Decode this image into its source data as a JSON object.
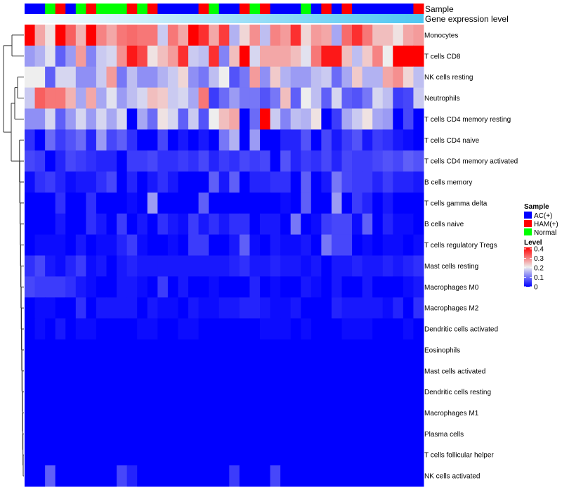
{
  "chart_data": {
    "type": "heatmap",
    "annotations": {
      "sample_label": "Sample",
      "gene_label": "Gene expression level"
    },
    "sample_groups": [
      "AC(+)",
      "AC(+)",
      "Normal",
      "HAM(+)",
      "AC(+)",
      "Normal",
      "HAM(+)",
      "Normal",
      "Normal",
      "Normal",
      "HAM(+)",
      "Normal",
      "HAM(+)",
      "AC(+)",
      "AC(+)",
      "AC(+)",
      "AC(+)",
      "HAM(+)",
      "Normal",
      "AC(+)",
      "AC(+)",
      "HAM(+)",
      "Normal",
      "HAM(+)",
      "AC(+)",
      "AC(+)",
      "AC(+)",
      "Normal",
      "AC(+)",
      "HAM(+)",
      "AC(+)",
      "HAM(+)",
      "AC(+)",
      "AC(+)",
      "AC(+)",
      "AC(+)",
      "AC(+)",
      "AC(+)",
      "HAM(+)"
    ],
    "legend": {
      "sample_title": "Sample",
      "sample_items": [
        {
          "label": "AC(+)",
          "color": "#0000FF"
        },
        {
          "label": "HAM(+)",
          "color": "#FF0000"
        },
        {
          "label": "Normal",
          "color": "#00FF00"
        }
      ],
      "level_title": "Level",
      "level_ticks": [
        "0.4",
        "0.3",
        "0.2",
        "0.1",
        "0"
      ],
      "level_range": [
        0,
        0.4
      ],
      "placement": "right"
    },
    "colors": {
      "low": "#0000FF",
      "mid": "#EEEEEE",
      "high": "#FF0000",
      "gene_low": "#FFFFFF",
      "gene_high": "#4DC6F2"
    },
    "rows": [
      {
        "name": "Monocytes",
        "values": [
          0.4,
          0.26,
          0.21,
          0.4,
          0.32,
          0.25,
          0.4,
          0.29,
          0.26,
          0.3,
          0.31,
          0.3,
          0.3,
          0.17,
          0.3,
          0.26,
          0.4,
          0.36,
          0.26,
          0.35,
          0.15,
          0.22,
          0.28,
          0.16,
          0.29,
          0.27,
          0.36,
          0.22,
          0.27,
          0.26,
          0.14,
          0.31,
          0.36,
          0.3,
          0.24,
          0.24,
          0.21,
          0.26,
          0.27
        ]
      },
      {
        "name": "T cells CD8",
        "values": [
          0.13,
          0.15,
          0.19,
          0.08,
          0.13,
          0.27,
          0.11,
          0.17,
          0.18,
          0.28,
          0.38,
          0.34,
          0.21,
          0.24,
          0.27,
          0.36,
          0.17,
          0.16,
          0.36,
          0.11,
          0.24,
          0.4,
          0.18,
          0.26,
          0.26,
          0.26,
          0.24,
          0.19,
          0.3,
          0.38,
          0.38,
          0.24,
          0.16,
          0.23,
          0.29,
          0.2,
          0.4,
          0.4,
          0.4
        ]
      },
      {
        "name": "NK cells resting",
        "values": [
          0.2,
          0.2,
          0.08,
          0.18,
          0.18,
          0.12,
          0.12,
          0.17,
          0.27,
          0.1,
          0.16,
          0.12,
          0.12,
          0.15,
          0.17,
          0.22,
          0.12,
          0.1,
          0.16,
          0.2,
          0.07,
          0.1,
          0.27,
          0.12,
          0.23,
          0.15,
          0.13,
          0.13,
          0.16,
          0.17,
          0.09,
          0.14,
          0.23,
          0.15,
          0.15,
          0.26,
          0.28,
          0.22,
          0.16
        ]
      },
      {
        "name": "Neutrophils",
        "values": [
          0.17,
          0.32,
          0.3,
          0.3,
          0.25,
          0.14,
          0.26,
          0.14,
          0.19,
          0.13,
          0.16,
          0.18,
          0.24,
          0.23,
          0.17,
          0.18,
          0.14,
          0.3,
          0.05,
          0.09,
          0.13,
          0.1,
          0.1,
          0.07,
          0.1,
          0.24,
          0.08,
          0.2,
          0.16,
          0.08,
          0.18,
          0.08,
          0.07,
          0.1,
          0.18,
          0.16,
          0.05,
          0.06,
          0.17
        ]
      },
      {
        "name": "T cells CD4 memory resting",
        "values": [
          0.12,
          0.12,
          0.18,
          0.08,
          0.13,
          0.18,
          0.13,
          0.18,
          0.14,
          0.18,
          0,
          0.14,
          0.09,
          0.21,
          0.18,
          0.08,
          0.17,
          0.07,
          0.2,
          0.24,
          0.26,
          0,
          0.09,
          0.4,
          0.17,
          0.11,
          0.16,
          0.15,
          0.21,
          0,
          0.05,
          0.14,
          0.17,
          0.21,
          0.14,
          0.13,
          0,
          0.06,
          0
        ]
      },
      {
        "name": "T cells CD4 naive",
        "values": [
          0.04,
          0,
          0.09,
          0.05,
          0.07,
          0.09,
          0.03,
          0.13,
          0.06,
          0.08,
          0.04,
          0,
          0,
          0.06,
          0,
          0.02,
          0,
          0.02,
          0,
          0.1,
          0.15,
          0,
          0.13,
          0,
          0,
          0.03,
          0.03,
          0.07,
          0,
          0.06,
          0.02,
          0.05,
          0.07,
          0.02,
          0.05,
          0.04,
          0.02,
          0.01,
          0
        ]
      },
      {
        "name": "T cells CD4 memory activated",
        "values": [
          0.06,
          0.05,
          0,
          0.03,
          0.06,
          0.05,
          0.04,
          0.03,
          0.03,
          0,
          0.05,
          0.05,
          0.06,
          0.04,
          0.04,
          0.05,
          0.04,
          0.06,
          0.03,
          0.05,
          0.04,
          0.06,
          0.05,
          0.06,
          0,
          0.07,
          0.03,
          0.05,
          0.04,
          0.06,
          0.03,
          0.06,
          0.05,
          0.05,
          0.06,
          0.07,
          0.06,
          0.08,
          0.07
        ]
      },
      {
        "name": "B cells memory",
        "values": [
          0.01,
          0.04,
          0.05,
          0.03,
          0.01,
          0.02,
          0.02,
          0.04,
          0.06,
          0,
          0.03,
          0,
          0.02,
          0.04,
          0.02,
          0,
          0,
          0,
          0.08,
          0.02,
          0.08,
          0,
          0.03,
          0.03,
          0.04,
          0.04,
          0,
          0.08,
          0,
          0.02,
          0.1,
          0.06,
          0.05,
          0.05,
          0.03,
          0.05,
          0.03,
          0.03,
          0.02
        ]
      },
      {
        "name": "T cells gamma delta",
        "values": [
          0,
          0,
          0,
          0.04,
          0,
          0,
          0.04,
          0,
          0,
          0,
          0.01,
          0,
          0.13,
          0,
          0,
          0,
          0,
          0.08,
          0,
          0,
          0,
          0,
          0,
          0,
          0,
          0.01,
          0,
          0.08,
          0,
          0,
          0.13,
          0,
          0.05,
          0.03,
          0,
          0.02,
          0,
          0,
          0
        ]
      },
      {
        "name": "B cells naive",
        "values": [
          0,
          0,
          0,
          0.02,
          0,
          0,
          0.04,
          0.02,
          0,
          0.05,
          0,
          0.02,
          0,
          0.04,
          0.02,
          0.01,
          0.05,
          0.02,
          0.04,
          0.02,
          0.04,
          0.04,
          0,
          0.02,
          0.02,
          0,
          0.1,
          0,
          0.01,
          0.05,
          0.06,
          0.06,
          0.01,
          0.08,
          0,
          0.03,
          0.01,
          0.01,
          0
        ]
      },
      {
        "name": "T cells regulatory  Tregs",
        "values": [
          0,
          0.01,
          0.01,
          0.01,
          0,
          0.02,
          0,
          0.01,
          0.01,
          0.03,
          0.05,
          0.01,
          0,
          0,
          0.01,
          0,
          0.05,
          0.05,
          0,
          0,
          0.02,
          0.08,
          0.01,
          0,
          0.02,
          0.01,
          0.01,
          0.02,
          0,
          0.1,
          0.06,
          0.06,
          0,
          0.01,
          0,
          0.01,
          0.01,
          0,
          0.01
        ]
      },
      {
        "name": "Mast cells resting",
        "values": [
          0.04,
          0.06,
          0.02,
          0.01,
          0.03,
          0.05,
          0.01,
          0.02,
          0,
          0.02,
          0.03,
          0.02,
          0.02,
          0.02,
          0.02,
          0.02,
          0.02,
          0.02,
          0.02,
          0.02,
          0.03,
          0.04,
          0.02,
          0.02,
          0.03,
          0.02,
          0.02,
          0.01,
          0.02,
          0,
          0.02,
          0.02,
          0.03,
          0.02,
          0.02,
          0.03,
          0.02,
          0.03,
          0.04
        ]
      },
      {
        "name": "Macrophages M0",
        "values": [
          0.06,
          0.05,
          0.05,
          0.05,
          0.04,
          0.02,
          0.01,
          0,
          0,
          0.02,
          0.02,
          0.01,
          0,
          0.05,
          0,
          0.02,
          0,
          0,
          0.01,
          0,
          0,
          0,
          0.03,
          0,
          0.01,
          0,
          0,
          0.02,
          0.01,
          0,
          0.02,
          0,
          0,
          0.02,
          0,
          0,
          0,
          0.01,
          0.02
        ]
      },
      {
        "name": "Macrophages M2",
        "values": [
          0,
          0.01,
          0.01,
          0,
          0,
          0.04,
          0,
          0.02,
          0.02,
          0.02,
          0.02,
          0,
          0.02,
          0.01,
          0.01,
          0,
          0.02,
          0.01,
          0.01,
          0.02,
          0.02,
          0.03,
          0.03,
          0.02,
          0.01,
          0.01,
          0.02,
          0,
          0,
          0,
          0.03,
          0.02,
          0.02,
          0.02,
          0.02,
          0.01,
          0.03,
          0,
          0.04
        ]
      },
      {
        "name": "Dendritic cells activated",
        "values": [
          0,
          0.01,
          0,
          0.02,
          0,
          0.01,
          0.01,
          0,
          0,
          0,
          0,
          0.01,
          0.01,
          0,
          0,
          0.01,
          0.01,
          0,
          0,
          0,
          0,
          0,
          0,
          0.01,
          0.01,
          0.01,
          0,
          0.01,
          0,
          0,
          0,
          0.01,
          0.01,
          0.01,
          0,
          0,
          0,
          0.01,
          0
        ]
      },
      {
        "name": "Eosinophils",
        "values": [
          0,
          0,
          0,
          0,
          0,
          0,
          0,
          0,
          0,
          0,
          0,
          0,
          0,
          0,
          0,
          0,
          0,
          0,
          0,
          0,
          0,
          0,
          0,
          0,
          0,
          0,
          0,
          0,
          0,
          0,
          0,
          0,
          0,
          0,
          0,
          0,
          0,
          0,
          0
        ]
      },
      {
        "name": "Mast cells activated",
        "values": [
          0,
          0,
          0,
          0,
          0,
          0,
          0,
          0,
          0,
          0,
          0,
          0,
          0,
          0,
          0,
          0,
          0,
          0,
          0,
          0,
          0,
          0,
          0,
          0,
          0,
          0,
          0,
          0,
          0,
          0,
          0,
          0,
          0,
          0,
          0,
          0,
          0,
          0,
          0
        ]
      },
      {
        "name": "Dendritic cells resting",
        "values": [
          0,
          0,
          0,
          0,
          0,
          0,
          0,
          0,
          0,
          0,
          0,
          0,
          0,
          0,
          0,
          0,
          0,
          0,
          0,
          0,
          0,
          0,
          0,
          0,
          0,
          0,
          0,
          0,
          0,
          0,
          0,
          0,
          0,
          0,
          0,
          0,
          0,
          0,
          0
        ]
      },
      {
        "name": "Macrophages M1",
        "values": [
          0,
          0,
          0,
          0,
          0,
          0,
          0,
          0,
          0,
          0,
          0,
          0,
          0,
          0,
          0,
          0,
          0,
          0,
          0,
          0,
          0,
          0,
          0,
          0,
          0,
          0,
          0,
          0,
          0,
          0,
          0,
          0,
          0,
          0,
          0,
          0,
          0,
          0,
          0
        ]
      },
      {
        "name": "Plasma cells",
        "values": [
          0,
          0,
          0,
          0,
          0,
          0,
          0,
          0,
          0,
          0,
          0,
          0,
          0,
          0,
          0,
          0,
          0,
          0,
          0,
          0,
          0,
          0,
          0,
          0,
          0,
          0,
          0,
          0,
          0,
          0,
          0,
          0,
          0,
          0,
          0,
          0,
          0,
          0,
          0
        ]
      },
      {
        "name": "T cells follicular helper",
        "values": [
          0,
          0,
          0,
          0,
          0,
          0,
          0,
          0,
          0,
          0,
          0,
          0,
          0,
          0,
          0,
          0,
          0,
          0,
          0,
          0,
          0,
          0,
          0,
          0,
          0,
          0,
          0,
          0,
          0,
          0,
          0,
          0,
          0,
          0,
          0,
          0,
          0,
          0,
          0
        ]
      },
      {
        "name": "NK cells activated",
        "values": [
          0,
          0,
          0.08,
          0,
          0,
          0,
          0,
          0,
          0,
          0.06,
          0.03,
          0,
          0,
          0,
          0,
          0,
          0,
          0,
          0,
          0,
          0.05,
          0,
          0,
          0,
          0.06,
          0,
          0,
          0,
          0,
          0,
          0,
          0,
          0,
          0,
          0,
          0,
          0,
          0,
          0
        ]
      }
    ]
  }
}
